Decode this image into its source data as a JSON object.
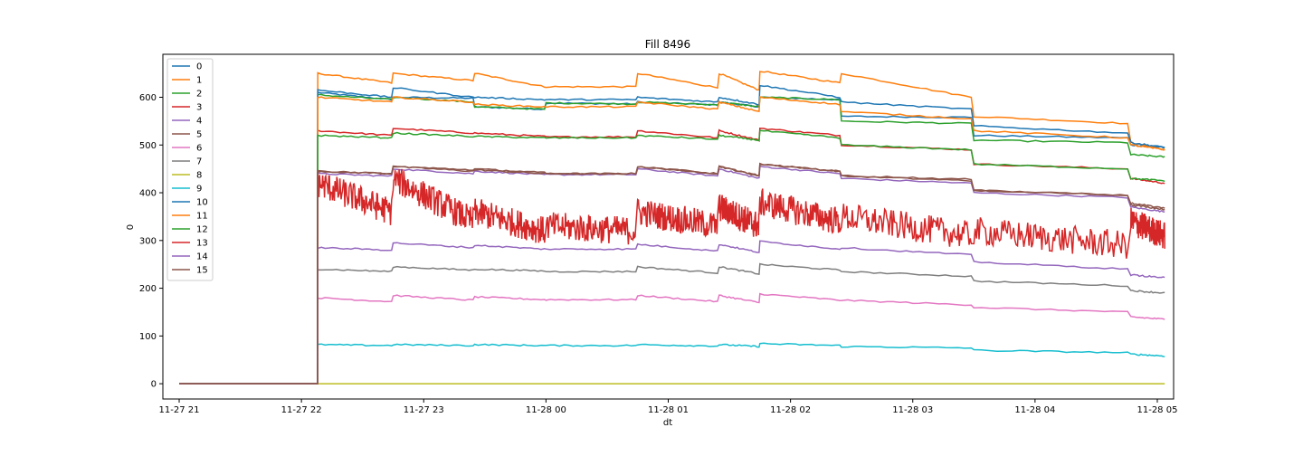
{
  "chart_data": {
    "type": "line",
    "title": "Fill 8496",
    "xlabel": "dt",
    "ylabel": "0",
    "xlim": [
      "2022-11-27 20:52",
      "2022-11-28 05:08"
    ],
    "ylim": [
      -32,
      690
    ],
    "x_ticks": [
      {
        "time": "2022-11-27 21:00",
        "label": "11-27 21"
      },
      {
        "time": "2022-11-27 22:00",
        "label": "11-27 22"
      },
      {
        "time": "2022-11-27 23:00",
        "label": "11-27 23"
      },
      {
        "time": "2022-11-28 00:00",
        "label": "11-28 00"
      },
      {
        "time": "2022-11-28 01:00",
        "label": "11-28 01"
      },
      {
        "time": "2022-11-28 02:00",
        "label": "11-28 02"
      },
      {
        "time": "2022-11-28 03:00",
        "label": "11-28 03"
      },
      {
        "time": "2022-11-28 04:00",
        "label": "11-28 04"
      },
      {
        "time": "2022-11-28 05:00",
        "label": "11-28 05"
      }
    ],
    "y_ticks": [
      0,
      100,
      200,
      300,
      400,
      500,
      600
    ],
    "grid": false,
    "legend_position": "upper-left",
    "series": [
      {
        "name": "0",
        "color": "#1f77b4",
        "values": [
          [
            0,
            0
          ],
          [
            0,
            0
          ],
          [
            610,
            595
          ],
          [
            600,
            598
          ],
          [
            580,
            575
          ],
          [
            588,
            586
          ],
          [
            590,
            584
          ],
          [
            590,
            580
          ],
          [
            600,
            595
          ],
          [
            560,
            558
          ],
          [
            520,
            515
          ],
          [
            500,
            495
          ]
        ]
      },
      {
        "name": "1",
        "color": "#ff7f0e",
        "values": [
          [
            0,
            0
          ],
          [
            0,
            0
          ],
          [
            650,
            630
          ],
          [
            650,
            635
          ],
          [
            650,
            622
          ],
          [
            622,
            622
          ],
          [
            650,
            620
          ],
          [
            650,
            615
          ],
          [
            655,
            630
          ],
          [
            650,
            600
          ],
          [
            560,
            545
          ],
          [
            505,
            490
          ]
        ]
      },
      {
        "name": "2",
        "color": "#2ca02c",
        "values": [
          [
            0,
            0
          ],
          [
            0,
            0
          ],
          [
            605,
            595
          ],
          [
            600,
            590
          ],
          [
            580,
            575
          ],
          [
            588,
            586
          ],
          [
            590,
            584
          ],
          [
            590,
            580
          ],
          [
            600,
            595
          ],
          [
            550,
            545
          ],
          [
            510,
            505
          ],
          [
            480,
            475
          ]
        ]
      },
      {
        "name": "3",
        "color": "#d62728",
        "values": [
          [
            0,
            0
          ],
          [
            0,
            0
          ],
          [
            530,
            520
          ],
          [
            535,
            525
          ],
          [
            525,
            518
          ],
          [
            517,
            517
          ],
          [
            530,
            515
          ],
          [
            530,
            510
          ],
          [
            535,
            520
          ],
          [
            500,
            490
          ],
          [
            460,
            450
          ],
          [
            430,
            420
          ]
        ]
      },
      {
        "name": "4",
        "color": "#9467bd",
        "values": [
          [
            0,
            0
          ],
          [
            0,
            0
          ],
          [
            440,
            435
          ],
          [
            450,
            440
          ],
          [
            445,
            438
          ],
          [
            438,
            438
          ],
          [
            450,
            435
          ],
          [
            450,
            430
          ],
          [
            455,
            440
          ],
          [
            430,
            420
          ],
          [
            400,
            390
          ],
          [
            370,
            360
          ]
        ]
      },
      {
        "name": "5",
        "color": "#8c564b",
        "values": [
          [
            0,
            0
          ],
          [
            0,
            0
          ],
          [
            445,
            440
          ],
          [
            455,
            445
          ],
          [
            448,
            440
          ],
          [
            440,
            440
          ],
          [
            455,
            440
          ],
          [
            455,
            435
          ],
          [
            460,
            445
          ],
          [
            435,
            425
          ],
          [
            405,
            395
          ],
          [
            375,
            365
          ]
        ]
      },
      {
        "name": "6",
        "color": "#e377c2",
        "values": [
          [
            0,
            0
          ],
          [
            0,
            0
          ],
          [
            180,
            172
          ],
          [
            185,
            175
          ],
          [
            182,
            176
          ],
          [
            176,
            176
          ],
          [
            185,
            172
          ],
          [
            185,
            170
          ],
          [
            188,
            175
          ],
          [
            175,
            165
          ],
          [
            160,
            150
          ],
          [
            140,
            135
          ]
        ]
      },
      {
        "name": "7",
        "color": "#7f7f7f",
        "values": [
          [
            0,
            0
          ],
          [
            0,
            0
          ],
          [
            240,
            235
          ],
          [
            245,
            238
          ],
          [
            240,
            236
          ],
          [
            235,
            235
          ],
          [
            245,
            232
          ],
          [
            245,
            230
          ],
          [
            250,
            238
          ],
          [
            235,
            225
          ],
          [
            215,
            205
          ],
          [
            195,
            190
          ]
        ]
      },
      {
        "name": "8",
        "color": "#bcbd22",
        "values": [
          [
            0,
            0
          ],
          [
            0,
            0
          ],
          [
            0,
            0
          ],
          [
            0,
            0
          ],
          [
            0,
            0
          ],
          [
            0,
            0
          ],
          [
            0,
            0
          ],
          [
            0,
            0
          ],
          [
            0,
            0
          ],
          [
            0,
            0
          ],
          [
            0,
            0
          ],
          [
            0,
            0
          ]
        ]
      },
      {
        "name": "9",
        "color": "#17becf",
        "values": [
          [
            0,
            0
          ],
          [
            0,
            0
          ],
          [
            82,
            80
          ],
          [
            82,
            80
          ],
          [
            82,
            80
          ],
          [
            80,
            80
          ],
          [
            82,
            79
          ],
          [
            82,
            78
          ],
          [
            84,
            80
          ],
          [
            78,
            75
          ],
          [
            70,
            65
          ],
          [
            62,
            58
          ]
        ]
      },
      {
        "name": "10",
        "color": "#1f77b4",
        "values": [
          [
            0,
            0
          ],
          [
            0,
            0
          ],
          [
            615,
            600
          ],
          [
            620,
            600
          ],
          [
            600,
            595
          ],
          [
            595,
            595
          ],
          [
            600,
            590
          ],
          [
            600,
            585
          ],
          [
            625,
            600
          ],
          [
            590,
            575
          ],
          [
            540,
            525
          ],
          [
            505,
            495
          ]
        ]
      },
      {
        "name": "11",
        "color": "#ff7f0e",
        "values": [
          [
            0,
            0
          ],
          [
            0,
            0
          ],
          [
            600,
            590
          ],
          [
            600,
            590
          ],
          [
            585,
            580
          ],
          [
            580,
            580
          ],
          [
            590,
            575
          ],
          [
            590,
            570
          ],
          [
            600,
            585
          ],
          [
            570,
            555
          ],
          [
            530,
            515
          ],
          [
            500,
            490
          ]
        ]
      },
      {
        "name": "12",
        "color": "#2ca02c",
        "values": [
          [
            0,
            0
          ],
          [
            0,
            0
          ],
          [
            520,
            515
          ],
          [
            525,
            518
          ],
          [
            518,
            515
          ],
          [
            515,
            515
          ],
          [
            520,
            512
          ],
          [
            520,
            510
          ],
          [
            530,
            515
          ],
          [
            500,
            490
          ],
          [
            460,
            450
          ],
          [
            430,
            425
          ]
        ]
      },
      {
        "name": "13",
        "color": "#d62728",
        "values": [
          [
            0,
            0
          ],
          [
            0,
            0
          ],
          [
            420,
            360
          ],
          [
            430,
            340
          ],
          [
            360,
            320
          ],
          [
            330,
            320
          ],
          [
            360,
            330
          ],
          [
            370,
            330
          ],
          [
            380,
            340
          ],
          [
            350,
            310
          ],
          [
            320,
            290
          ],
          [
            340,
            310
          ]
        ]
      },
      {
        "name": "14",
        "color": "#9467bd",
        "values": [
          [
            0,
            0
          ],
          [
            0,
            0
          ],
          [
            285,
            280
          ],
          [
            295,
            285
          ],
          [
            290,
            282
          ],
          [
            282,
            282
          ],
          [
            292,
            278
          ],
          [
            292,
            275
          ],
          [
            298,
            282
          ],
          [
            285,
            270
          ],
          [
            255,
            240
          ],
          [
            228,
            222
          ]
        ]
      },
      {
        "name": "15",
        "color": "#8c564b",
        "values": [
          [
            0,
            0
          ],
          [
            0,
            0
          ],
          [
            445,
            440
          ],
          [
            455,
            448
          ],
          [
            450,
            442
          ],
          [
            440,
            440
          ],
          [
            455,
            440
          ],
          [
            455,
            436
          ],
          [
            460,
            445
          ],
          [
            436,
            428
          ],
          [
            405,
            395
          ],
          [
            378,
            368
          ]
        ]
      }
    ],
    "segment_times": [
      "2022-11-27 21:00",
      "2022-11-27 22:03",
      "2022-11-27 22:08",
      "2022-11-27 22:45",
      "2022-11-27 23:25",
      "2022-11-28 00:00",
      "2022-11-28 00:45",
      "2022-11-28 01:25",
      "2022-11-28 01:45",
      "2022-11-28 02:25",
      "2022-11-28 03:30",
      "2022-11-28 04:47"
    ],
    "legend_entries": [
      "0",
      "1",
      "2",
      "3",
      "4",
      "5",
      "6",
      "7",
      "8",
      "9",
      "10",
      "11",
      "12",
      "13",
      "14",
      "15"
    ]
  }
}
